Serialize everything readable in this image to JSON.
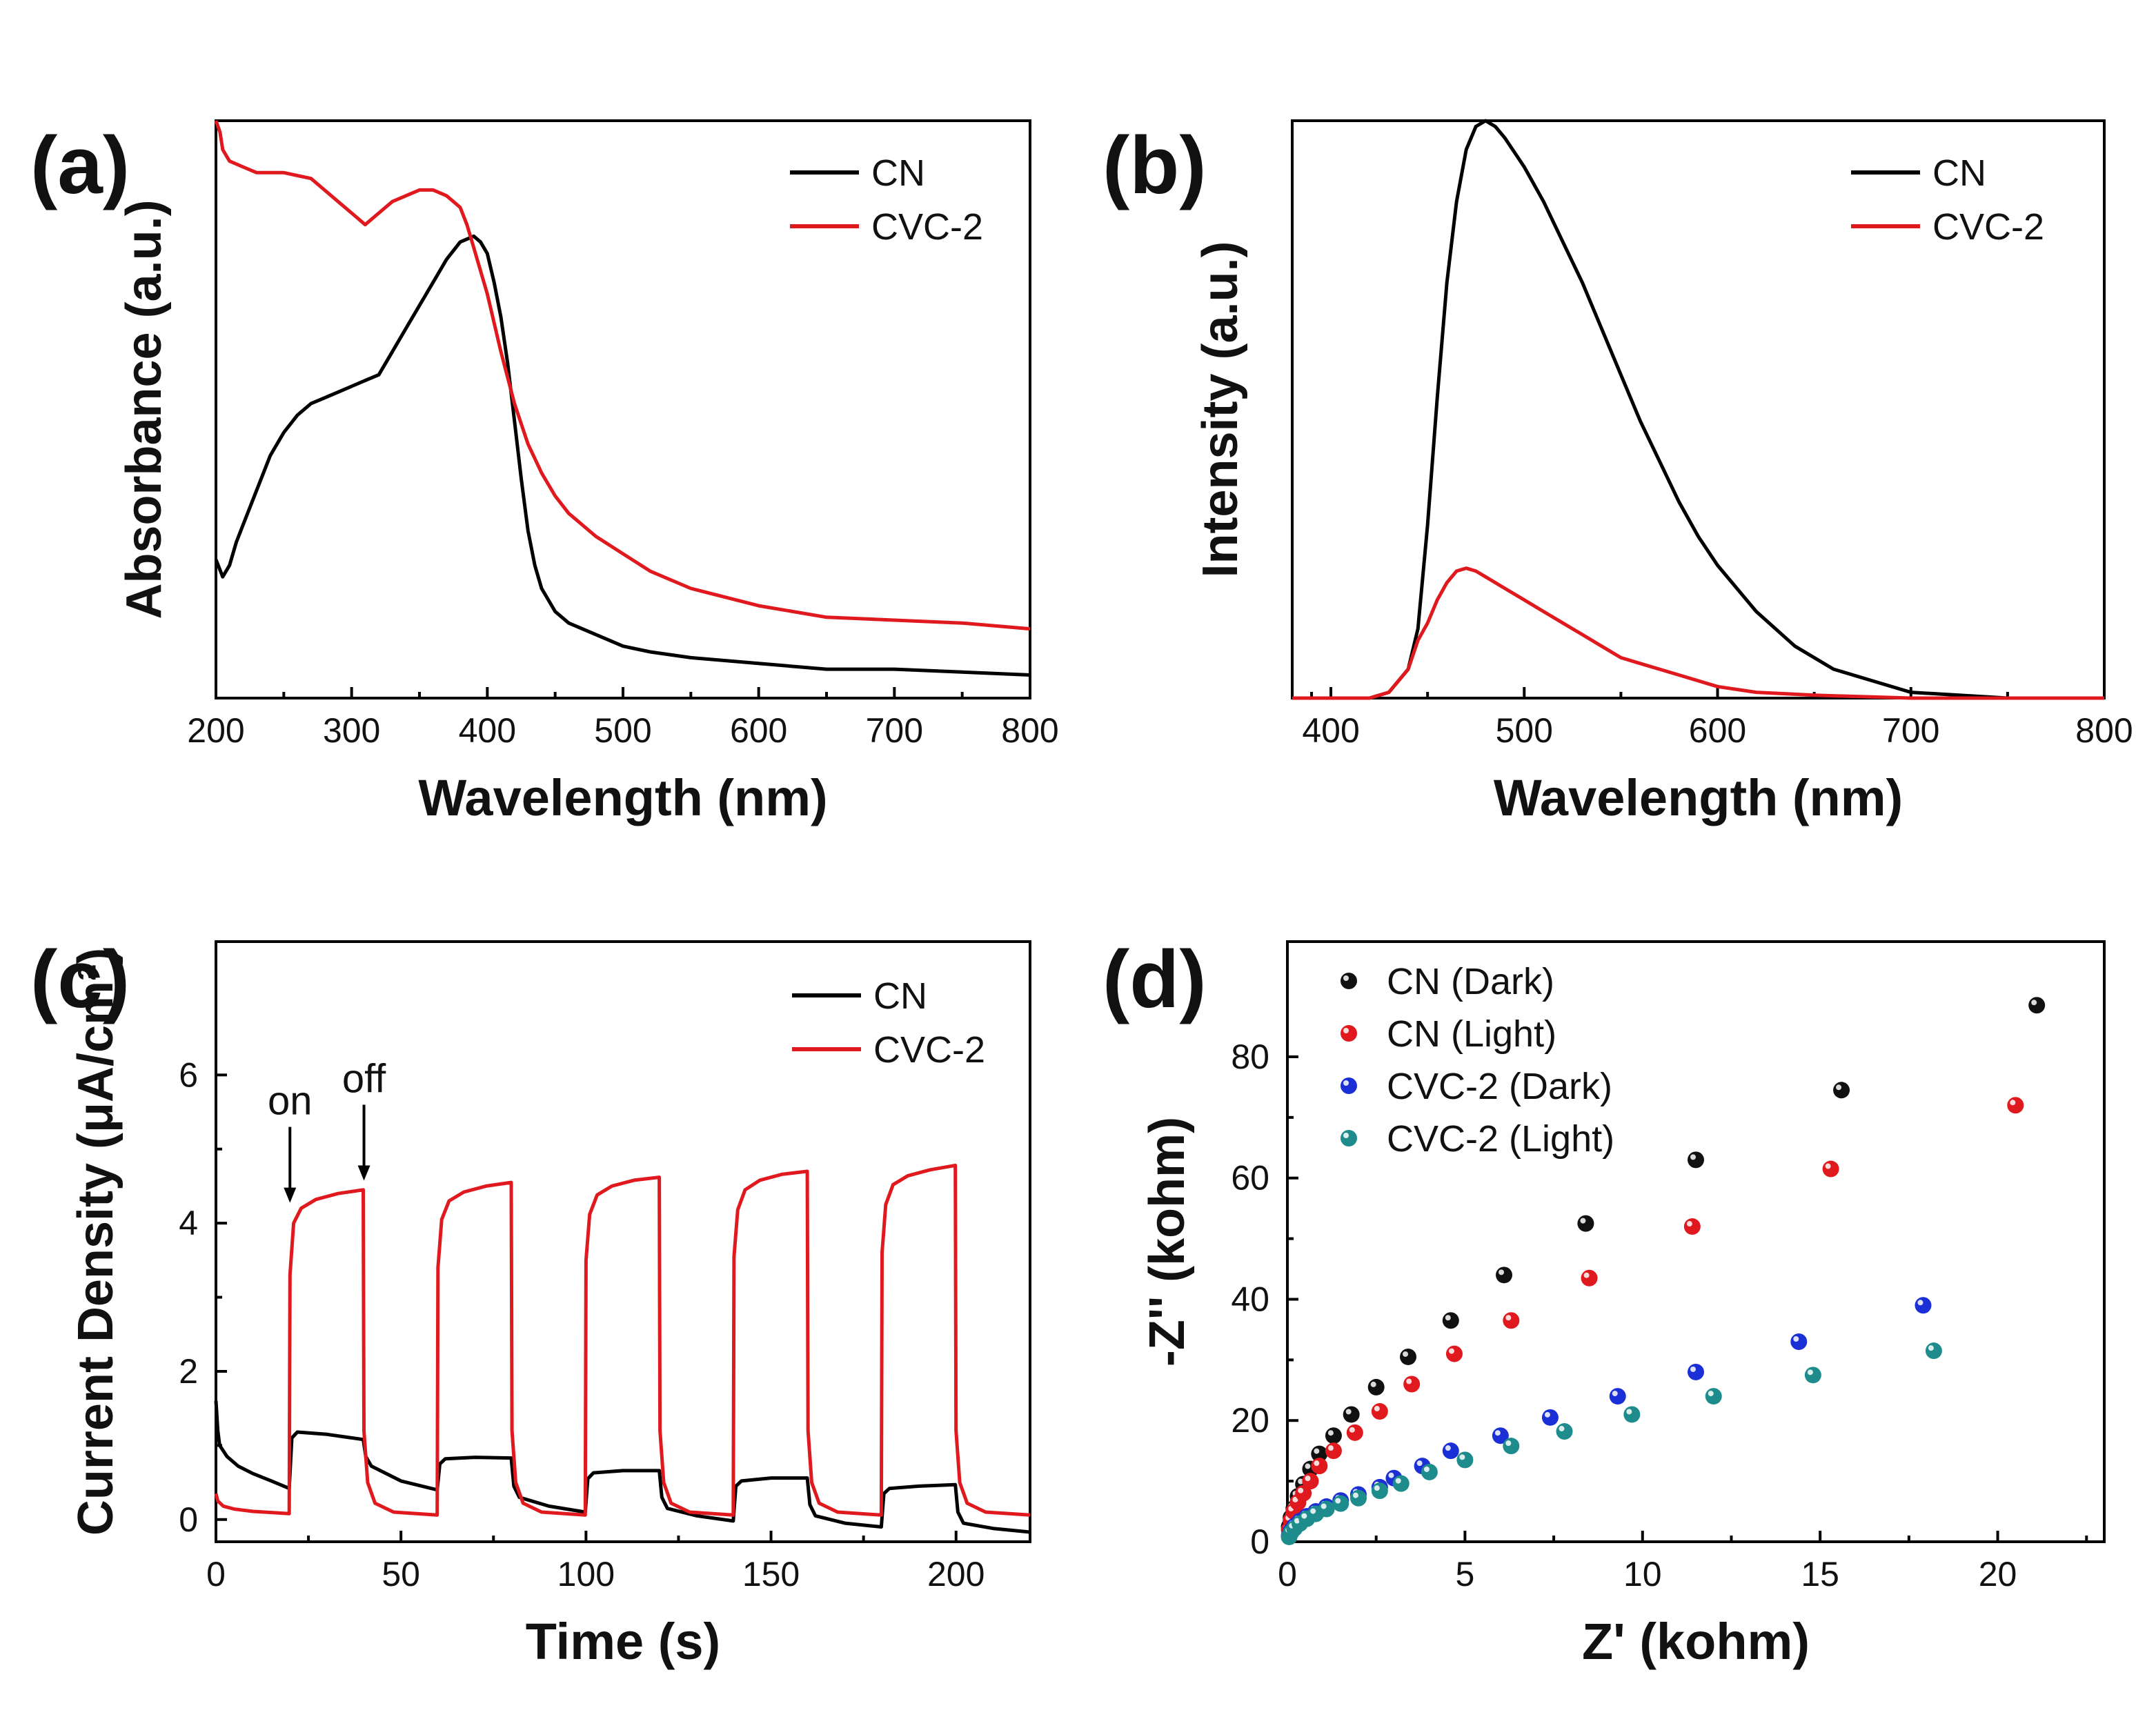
{
  "chart_data": [
    {
      "id": "a",
      "panel_label": "(a)",
      "type": "line",
      "title": "",
      "xlabel": "Wavelength (nm)",
      "ylabel": "Absorbance (a.u.)",
      "xlim": [
        200,
        800
      ],
      "ylim": [
        0,
        1
      ],
      "xticks": [
        200,
        300,
        400,
        500,
        600,
        700,
        800
      ],
      "yticks": [],
      "legend": "top-right",
      "series": [
        {
          "name": "CN",
          "color": "#000000",
          "x": [
            200,
            205,
            210,
            215,
            220,
            230,
            240,
            250,
            260,
            270,
            280,
            290,
            300,
            310,
            320,
            330,
            340,
            350,
            360,
            370,
            380,
            390,
            395,
            400,
            405,
            410,
            415,
            420,
            425,
            430,
            435,
            440,
            450,
            460,
            470,
            480,
            500,
            520,
            550,
            600,
            650,
            700,
            750,
            800
          ],
          "y": [
            0.24,
            0.21,
            0.23,
            0.27,
            0.3,
            0.36,
            0.42,
            0.46,
            0.49,
            0.51,
            0.52,
            0.53,
            0.54,
            0.55,
            0.56,
            0.6,
            0.64,
            0.68,
            0.72,
            0.76,
            0.79,
            0.8,
            0.79,
            0.77,
            0.72,
            0.66,
            0.58,
            0.48,
            0.38,
            0.29,
            0.23,
            0.19,
            0.15,
            0.13,
            0.12,
            0.11,
            0.09,
            0.08,
            0.07,
            0.06,
            0.05,
            0.05,
            0.045,
            0.04
          ]
        },
        {
          "name": "CVC-2",
          "color": "#e0191e",
          "x": [
            200,
            203,
            205,
            210,
            220,
            230,
            240,
            250,
            260,
            270,
            280,
            290,
            300,
            310,
            320,
            330,
            340,
            350,
            360,
            370,
            380,
            385,
            390,
            400,
            410,
            420,
            430,
            440,
            450,
            460,
            470,
            480,
            500,
            520,
            550,
            600,
            650,
            700,
            750,
            800
          ],
          "y": [
            1.0,
            0.98,
            0.95,
            0.93,
            0.92,
            0.91,
            0.91,
            0.91,
            0.905,
            0.9,
            0.88,
            0.86,
            0.84,
            0.82,
            0.84,
            0.86,
            0.87,
            0.88,
            0.88,
            0.87,
            0.85,
            0.82,
            0.78,
            0.7,
            0.6,
            0.51,
            0.44,
            0.39,
            0.35,
            0.32,
            0.3,
            0.28,
            0.25,
            0.22,
            0.19,
            0.16,
            0.14,
            0.135,
            0.13,
            0.12
          ]
        }
      ]
    },
    {
      "id": "b",
      "panel_label": "(b)",
      "type": "line",
      "title": "",
      "xlabel": "Wavelength (nm)",
      "ylabel": "Intensity (a.u.)",
      "xlim": [
        380,
        800
      ],
      "ylim": [
        0,
        1
      ],
      "xticks": [
        400,
        500,
        600,
        700,
        800
      ],
      "yticks": [],
      "legend": "top-right",
      "series": [
        {
          "name": "CN",
          "color": "#000000",
          "x": [
            380,
            420,
            430,
            440,
            445,
            450,
            455,
            460,
            465,
            470,
            475,
            480,
            485,
            490,
            500,
            510,
            520,
            530,
            540,
            550,
            560,
            570,
            580,
            590,
            600,
            620,
            640,
            660,
            680,
            700,
            750,
            800
          ],
          "y": [
            0.0,
            0.0,
            0.01,
            0.05,
            0.12,
            0.3,
            0.52,
            0.72,
            0.86,
            0.95,
            0.99,
            1.0,
            0.99,
            0.97,
            0.92,
            0.86,
            0.79,
            0.72,
            0.64,
            0.56,
            0.48,
            0.41,
            0.34,
            0.28,
            0.23,
            0.15,
            0.09,
            0.05,
            0.03,
            0.01,
            0.0,
            0.0
          ]
        },
        {
          "name": "CVC-2",
          "color": "#e0191e",
          "x": [
            380,
            420,
            430,
            440,
            445,
            450,
            455,
            460,
            465,
            470,
            475,
            480,
            490,
            500,
            510,
            520,
            530,
            540,
            550,
            560,
            580,
            600,
            620,
            650,
            700,
            800
          ],
          "y": [
            0.0,
            0.0,
            0.01,
            0.05,
            0.1,
            0.13,
            0.17,
            0.2,
            0.22,
            0.225,
            0.22,
            0.21,
            0.19,
            0.17,
            0.15,
            0.13,
            0.11,
            0.09,
            0.07,
            0.06,
            0.04,
            0.02,
            0.01,
            0.005,
            0.0,
            0.0
          ]
        }
      ]
    },
    {
      "id": "c",
      "panel_label": "(c)",
      "type": "line",
      "title": "",
      "xlabel": "Time (s)",
      "ylabel": "Current Density (μA/cm²)",
      "xlim": [
        0,
        220
      ],
      "ylim": [
        -0.3,
        7.8
      ],
      "xticks": [
        0,
        50,
        100,
        150,
        200
      ],
      "yticks": [
        0,
        2,
        4,
        6
      ],
      "legend": "top-right",
      "annotations": [
        {
          "text": "on",
          "x": 20,
          "y": 4.2
        },
        {
          "text": "off",
          "x": 40,
          "y": 4.5
        }
      ],
      "series": [
        {
          "name": "CN",
          "color": "#000000",
          "x": [
            0,
            0.5,
            1,
            3,
            6,
            10,
            15,
            19.8,
            20.5,
            22,
            30,
            39.8,
            40.5,
            42,
            50,
            59.8,
            60.5,
            62,
            70,
            79.8,
            80.5,
            82,
            90,
            99.8,
            100.5,
            102,
            110,
            119.8,
            120.5,
            122,
            130,
            139.8,
            140.5,
            142,
            150,
            159.8,
            160.5,
            162,
            170,
            179.8,
            180.5,
            182,
            190,
            199.8,
            200.5,
            202,
            210,
            220
          ],
          "y": [
            1.6,
            1.2,
            1.0,
            0.85,
            0.72,
            0.62,
            0.52,
            0.42,
            1.1,
            1.18,
            1.15,
            1.08,
            0.85,
            0.72,
            0.52,
            0.4,
            0.75,
            0.82,
            0.84,
            0.83,
            0.45,
            0.3,
            0.18,
            0.1,
            0.55,
            0.63,
            0.66,
            0.66,
            0.3,
            0.15,
            0.05,
            -0.02,
            0.45,
            0.52,
            0.56,
            0.56,
            0.2,
            0.05,
            -0.05,
            -0.1,
            0.35,
            0.42,
            0.45,
            0.47,
            0.1,
            -0.05,
            -0.12,
            -0.17
          ]
        },
        {
          "name": "CVC-2",
          "color": "#e0191e",
          "x": [
            0,
            0.5,
            2,
            5,
            10,
            19.8,
            20,
            21,
            23,
            27,
            33,
            39.8,
            40,
            41,
            43,
            48,
            59.8,
            60,
            61,
            63,
            67,
            73,
            79.8,
            80,
            81,
            83,
            88,
            99.8,
            100,
            101,
            103,
            107,
            113,
            119.8,
            120,
            121,
            123,
            128,
            139.8,
            140,
            141,
            143,
            147,
            153,
            159.8,
            160,
            161,
            163,
            168,
            179.8,
            180,
            181,
            183,
            187,
            193,
            199.8,
            200,
            201,
            203,
            208,
            220
          ],
          "y": [
            0.35,
            0.25,
            0.18,
            0.14,
            0.11,
            0.08,
            3.3,
            4.0,
            4.2,
            4.32,
            4.4,
            4.45,
            1.2,
            0.5,
            0.22,
            0.1,
            0.06,
            3.4,
            4.05,
            4.3,
            4.42,
            4.5,
            4.55,
            1.2,
            0.5,
            0.22,
            0.1,
            0.06,
            3.5,
            4.12,
            4.38,
            4.5,
            4.58,
            4.62,
            1.2,
            0.5,
            0.22,
            0.1,
            0.06,
            3.55,
            4.18,
            4.45,
            4.58,
            4.66,
            4.7,
            1.2,
            0.5,
            0.22,
            0.1,
            0.06,
            3.6,
            4.25,
            4.52,
            4.64,
            4.72,
            4.78,
            1.2,
            0.5,
            0.22,
            0.1,
            0.06
          ]
        }
      ]
    },
    {
      "id": "d",
      "panel_label": "(d)",
      "type": "scatter",
      "title": "",
      "xlabel": "Z' (kohm)",
      "ylabel": "-Z'' (kohm)",
      "xlim": [
        0,
        23
      ],
      "ylim": [
        0,
        99
      ],
      "xticks": [
        0,
        5,
        10,
        15,
        20
      ],
      "yticks": [
        0,
        20,
        40,
        60,
        80
      ],
      "legend": "top-left",
      "series": [
        {
          "name": "CN (Dark)",
          "color": "#111111",
          "x": [
            0.05,
            0.1,
            0.18,
            0.3,
            0.45,
            0.65,
            0.9,
            1.3,
            1.8,
            2.5,
            3.4,
            4.6,
            6.1,
            8.4,
            11.5,
            15.6,
            21.1
          ],
          "y": [
            2.5,
            4,
            5.5,
            7.5,
            9.5,
            12,
            14.5,
            17.5,
            21,
            25.5,
            30.5,
            36.5,
            44,
            52.5,
            63,
            74.5,
            88.5
          ]
        },
        {
          "name": "CN (Light)",
          "color": "#e0191e",
          "x": [
            0.05,
            0.1,
            0.18,
            0.3,
            0.45,
            0.65,
            0.9,
            1.3,
            1.9,
            2.6,
            3.5,
            4.7,
            6.3,
            8.5,
            11.4,
            15.3,
            20.5
          ],
          "y": [
            2,
            3.5,
            5,
            6.5,
            8,
            10,
            12.5,
            15,
            18,
            21.5,
            26,
            31,
            36.5,
            43.5,
            52,
            61.5,
            72
          ]
        },
        {
          "name": "CVC-2 (Dark)",
          "color": "#1a2fd6",
          "x": [
            0.05,
            0.1,
            0.2,
            0.35,
            0.55,
            0.8,
            1.1,
            1.5,
            2.0,
            2.6,
            3.0,
            3.8,
            4.6,
            6.0,
            7.4,
            9.3,
            11.5,
            14.4,
            17.9
          ],
          "y": [
            1,
            1.8,
            2.6,
            3.4,
            4.2,
            5,
            5.8,
            6.8,
            7.8,
            9,
            10.5,
            12.5,
            15,
            17.5,
            20.5,
            24,
            28,
            33,
            39
          ]
        },
        {
          "name": "CVC-2 (Light)",
          "color": "#1e8c8c",
          "x": [
            0.05,
            0.1,
            0.2,
            0.35,
            0.55,
            0.8,
            1.1,
            1.5,
            2.0,
            2.6,
            3.2,
            4.0,
            5.0,
            6.3,
            7.8,
            9.7,
            12.0,
            14.8,
            18.2
          ],
          "y": [
            0.8,
            1.5,
            2.2,
            3,
            3.8,
            4.6,
            5.4,
            6.3,
            7.2,
            8.4,
            9.6,
            11.5,
            13.5,
            15.8,
            18.2,
            21,
            24,
            27.5,
            31.5
          ]
        }
      ]
    }
  ]
}
